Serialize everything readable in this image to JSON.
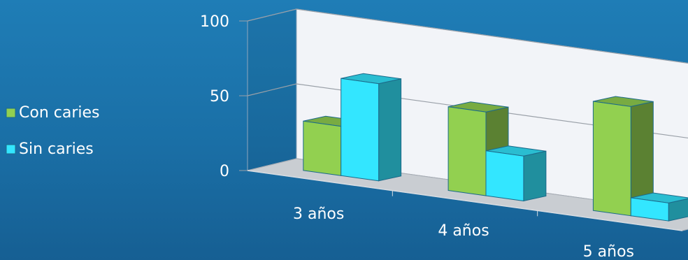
{
  "chart_data": {
    "type": "bar",
    "categories": [
      "3 años",
      "4 años",
      "5 años"
    ],
    "series": [
      {
        "name": "Con caries",
        "values": [
          33,
          56,
          73
        ],
        "color": "#92d050"
      },
      {
        "name": "Sin caries",
        "values": [
          65,
          30,
          12
        ],
        "color": "#33e6ff"
      }
    ],
    "ylim": [
      0,
      100
    ],
    "yticks": [
      "0",
      "50",
      "100"
    ],
    "grid": true,
    "legend": "left",
    "title": "",
    "xlabel": "",
    "ylabel": ""
  }
}
